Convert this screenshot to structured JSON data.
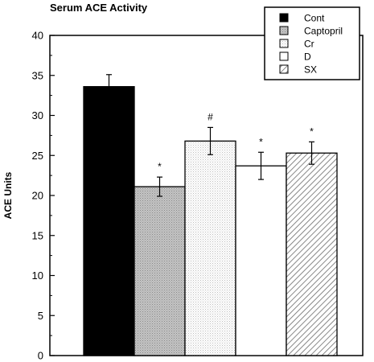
{
  "chart_data": {
    "type": "bar",
    "title": "Serum ACE Activity",
    "ylabel": "ACE Units",
    "xlabel": "",
    "ylim": [
      0,
      40
    ],
    "yticks": [
      0,
      5,
      10,
      15,
      20,
      25,
      30,
      35,
      40
    ],
    "categories": [
      "Cont",
      "Captopril",
      "Cr",
      "D",
      "SX"
    ],
    "values": [
      33.6,
      21.1,
      26.8,
      23.7,
      25.3
    ],
    "errors": [
      1.5,
      1.2,
      1.7,
      1.7,
      1.4
    ],
    "annotations": [
      "",
      "*",
      "#",
      "*",
      "*"
    ],
    "legend": {
      "position": "top-right",
      "entries": [
        "Cont",
        "Captopril",
        "Cr",
        "D",
        "SX"
      ]
    },
    "fills": [
      "solid-black",
      "dense-dots",
      "sparse-dots",
      "white",
      "diagonal-hatch"
    ],
    "colors": {
      "black": "#000000",
      "gray": "#b8b8b8",
      "white": "#ffffff"
    },
    "grid": false
  }
}
